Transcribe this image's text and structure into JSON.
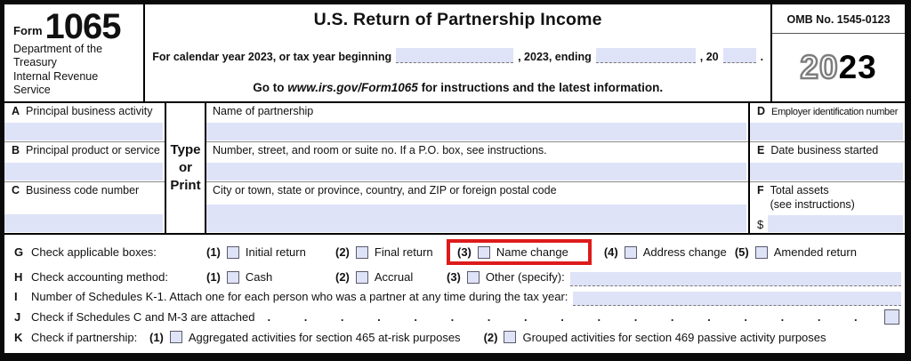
{
  "header": {
    "form_label": "Form",
    "form_number": "1065",
    "agency1": "Department of the Treasury",
    "agency2": "Internal Revenue Service",
    "title": "U.S. Return of Partnership Income",
    "calendar": {
      "part1": "For calendar year 2023, or tax year beginning",
      "part2": ", 2023, ending",
      "part3": ", 20",
      "part4": "."
    },
    "goto": {
      "prefix": "Go to ",
      "url": "www.irs.gov/Form1065",
      "suffix": " for instructions and the latest information."
    },
    "omb": "OMB No. 1545-0123",
    "year_outline": "20",
    "year_solid": "23"
  },
  "type_or_print": {
    "line1": "Type",
    "line2": "or",
    "line3": "Print"
  },
  "left_column": {
    "rows": [
      {
        "letter": "A",
        "label": "Principal business activity"
      },
      {
        "letter": "B",
        "label": "Principal product or service"
      },
      {
        "letter": "C",
        "label": "Business code number"
      }
    ]
  },
  "center_column": {
    "rows": [
      {
        "label": "Name of partnership"
      },
      {
        "label": "Number, street, and room or suite no. If a P.O. box, see instructions."
      },
      {
        "label": "City or town, state or province, country, and ZIP or foreign postal code"
      }
    ]
  },
  "right_column": {
    "rows": [
      {
        "letter": "D",
        "label": "Employer identification number"
      },
      {
        "letter": "E",
        "label": "Date business started"
      },
      {
        "letter": "F",
        "label": "Total assets",
        "label2": "(see instructions)",
        "currency": "$"
      }
    ]
  },
  "line_g": {
    "letter": "G",
    "label": "Check applicable boxes:",
    "options": [
      {
        "num": "(1)",
        "label": "Initial return"
      },
      {
        "num": "(2)",
        "label": "Final return"
      },
      {
        "num": "(3)",
        "label": "Name change"
      },
      {
        "num": "(4)",
        "label": "Address change"
      },
      {
        "num": "(5)",
        "label": "Amended return"
      }
    ]
  },
  "line_h": {
    "letter": "H",
    "label": "Check accounting method:",
    "options": [
      {
        "num": "(1)",
        "label": "Cash"
      },
      {
        "num": "(2)",
        "label": "Accrual"
      },
      {
        "num": "(3)",
        "label": "Other (specify):"
      }
    ]
  },
  "line_i": {
    "letter": "I",
    "label": "Number of Schedules K-1. Attach one for each person who was a partner at any time during the tax year:"
  },
  "line_j": {
    "letter": "J",
    "label": "Check if Schedules C and M-3 are attached",
    "dots": ".  .  .  .  .  .  .  .  .  .  .  .  .  .  .  .  .  .  .  .  .  .  .  .  .  .  .  ."
  },
  "line_k": {
    "letter": "K",
    "label": "Check if partnership:",
    "options": [
      {
        "num": "(1)",
        "label": "Aggregated activities for section 465 at-risk purposes"
      },
      {
        "num": "(2)",
        "label": "Grouped activities for section 469 passive activity purposes"
      }
    ]
  },
  "colors": {
    "highlight_red": "#dd1b1b",
    "field_fill": "#dfe3f7"
  }
}
